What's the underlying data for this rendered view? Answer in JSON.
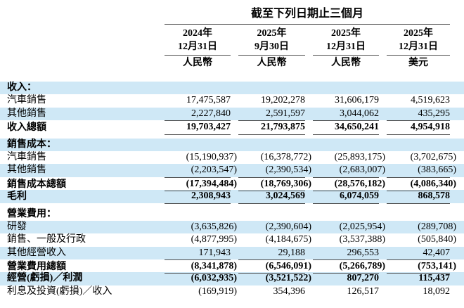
{
  "colors": {
    "band_blue": "#cfe8f6",
    "rule": "#4c4c4c",
    "text": "#000000",
    "background": "#ffffff"
  },
  "table": {
    "title": "截至下列日期止三個月",
    "columns": [
      {
        "year": "2024年",
        "date": "12月31日",
        "currency": "人民幣"
      },
      {
        "year": "2025年",
        "date": "9月30日",
        "currency": "人民幣"
      },
      {
        "year": "2025年",
        "date": "12月31日",
        "currency": "人民幣"
      },
      {
        "year": "2025年",
        "date": "12月31日",
        "currency": "美元"
      }
    ],
    "rows": [
      {
        "label": "收入：",
        "values": [
          "",
          "",
          "",
          ""
        ],
        "style": "section band"
      },
      {
        "label": "汽車銷售",
        "values": [
          "17,475,587",
          "19,202,278",
          "31,606,179",
          "4,519,623"
        ],
        "style": ""
      },
      {
        "label": "其他銷售",
        "values": [
          "2,227,840",
          "2,591,597",
          "3,044,062",
          "435,295"
        ],
        "style": "band"
      },
      {
        "label": "收入總額",
        "values": [
          "19,703,427",
          "21,793,875",
          "34,650,241",
          "4,954,918"
        ],
        "style": "bold rule-above rule-below"
      },
      {
        "spacer": true
      },
      {
        "label": "銷售成本：",
        "values": [
          "",
          "",
          "",
          ""
        ],
        "style": "section band"
      },
      {
        "label": "汽車銷售",
        "values": [
          "(15,190,937)",
          "(16,378,772)",
          "(25,893,175)",
          "(3,702,675)"
        ],
        "style": ""
      },
      {
        "label": "其他銷售",
        "values": [
          "(2,203,547)",
          "(2,390,534)",
          "(2,683,007)",
          "(383,665)"
        ],
        "style": "band"
      },
      {
        "label": "銷售成本總額",
        "values": [
          "(17,394,484)",
          "(18,769,306)",
          "(28,576,182)",
          "(4,086,340)"
        ],
        "style": "bold rule-above rule-below"
      },
      {
        "label": "毛利",
        "values": [
          "2,308,943",
          "3,024,569",
          "6,074,059",
          "868,578"
        ],
        "style": "bold band rule-below"
      },
      {
        "spacer": true
      },
      {
        "label": "營業費用：",
        "values": [
          "",
          "",
          "",
          ""
        ],
        "style": "section"
      },
      {
        "label": "研發",
        "values": [
          "(3,635,826)",
          "(2,390,604)",
          "(2,025,954)",
          "(289,708)"
        ],
        "style": "band"
      },
      {
        "label": "銷售、一般及行政",
        "values": [
          "(4,877,995)",
          "(4,184,675)",
          "(3,537,388)",
          "(505,840)"
        ],
        "style": ""
      },
      {
        "label": "其他經營收入",
        "values": [
          "171,943",
          "29,188",
          "296,553",
          "42,407"
        ],
        "style": "band"
      },
      {
        "label": "營業費用總額",
        "values": [
          "(8,341,878)",
          "(6,546,091)",
          "(5,266,789)",
          "(753,141)"
        ],
        "style": "bold rule-above rule-below"
      },
      {
        "label": "經營(虧損)／利潤",
        "values": [
          "(6,032,935)",
          "(3,521,522)",
          "807,270",
          "115,437"
        ],
        "style": "bold band"
      },
      {
        "label": "利息及投資(虧損)／收入",
        "values": [
          "(169,919)",
          "354,396",
          "126,517",
          "18,092"
        ],
        "style": ""
      }
    ]
  }
}
